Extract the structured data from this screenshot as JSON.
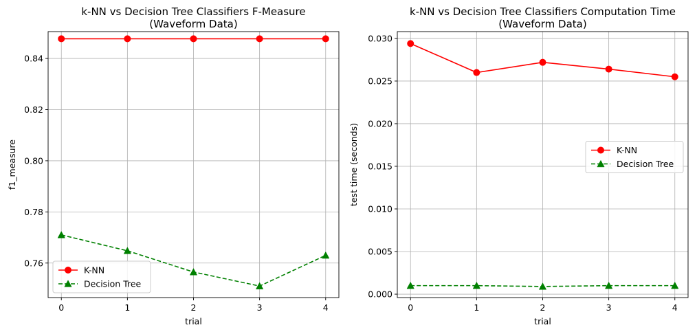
{
  "chart_data": [
    {
      "type": "line",
      "title": "k-NN vs Decision Tree Classifiers F-Measure",
      "subtitle": "(Waveform Data)",
      "xlabel": "trial",
      "ylabel": "f1_measure",
      "x": [
        0,
        1,
        2,
        3,
        4
      ],
      "xticks": [
        "0",
        "1",
        "2",
        "3",
        "4"
      ],
      "xlim": [
        -0.2,
        4.2
      ],
      "ylim": [
        0.7465,
        0.8505
      ],
      "yticks": [
        0.76,
        0.78,
        0.8,
        0.82,
        0.84
      ],
      "ytick_labels": [
        "0.76",
        "0.78",
        "0.80",
        "0.82",
        "0.84"
      ],
      "grid": true,
      "legend_position": "lower-left",
      "series": [
        {
          "name": "K-NN",
          "values": [
            0.8477,
            0.8477,
            0.8477,
            0.8477,
            0.8477
          ],
          "color": "#ff0000",
          "linestyle": "solid",
          "marker": "circle"
        },
        {
          "name": "Decision Tree",
          "values": [
            0.771,
            0.7648,
            0.7565,
            0.751,
            0.763
          ],
          "color": "#008000",
          "linestyle": "dashed",
          "marker": "triangle"
        }
      ]
    },
    {
      "type": "line",
      "title": "k-NN vs Decision Tree Classifiers Computation Time",
      "subtitle": "(Waveform Data)",
      "xlabel": "trial",
      "ylabel": "test time (seconds)",
      "x": [
        0,
        1,
        2,
        3,
        4
      ],
      "xticks": [
        "0",
        "1",
        "2",
        "3",
        "4"
      ],
      "xlim": [
        -0.2,
        4.2
      ],
      "ylim": [
        -0.0004,
        0.0308
      ],
      "yticks": [
        0.0,
        0.005,
        0.01,
        0.015,
        0.02,
        0.025,
        0.03
      ],
      "ytick_labels": [
        "0.000",
        "0.005",
        "0.010",
        "0.015",
        "0.020",
        "0.025",
        "0.030"
      ],
      "grid": true,
      "legend_position": "center-right",
      "series": [
        {
          "name": "K-NN",
          "values": [
            0.0294,
            0.026,
            0.0272,
            0.0264,
            0.0255
          ],
          "color": "#ff0000",
          "linestyle": "solid",
          "marker": "circle"
        },
        {
          "name": "Decision Tree",
          "values": [
            0.001,
            0.001,
            0.0009,
            0.001,
            0.001
          ],
          "color": "#008000",
          "linestyle": "dashed",
          "marker": "triangle"
        }
      ]
    }
  ]
}
